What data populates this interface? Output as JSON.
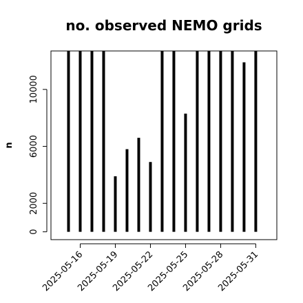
{
  "chart_data": {
    "type": "bar",
    "title": "no. observed NEMO grids",
    "xlabel": "",
    "ylabel": "n",
    "x_tick_labels": [
      "2025-05-16",
      "2025-05-19",
      "2025-05-22",
      "2025-05-25",
      "2025-05-28",
      "2025-05-31"
    ],
    "x_tick_dates": [
      16,
      19,
      22,
      25,
      28,
      31
    ],
    "y_ticks": [
      0,
      2000,
      6000,
      10000
    ],
    "y_tick_labels": [
      "0",
      "2000",
      "6000",
      "10000"
    ],
    "xlim": [
      13.5,
      32.8
    ],
    "ylim": [
      -550,
      12700
    ],
    "grid": false,
    "legend": "none",
    "bar_color": "#000000",
    "dates": [
      15,
      16,
      17,
      18,
      19,
      20,
      21,
      22,
      23,
      24,
      25,
      26,
      27,
      28,
      29,
      30,
      31
    ],
    "values": [
      12700,
      12700,
      12700,
      12700,
      3900,
      5800,
      6600,
      4900,
      12700,
      12700,
      8300,
      12700,
      12700,
      12700,
      12700,
      11900,
      12700
    ]
  }
}
